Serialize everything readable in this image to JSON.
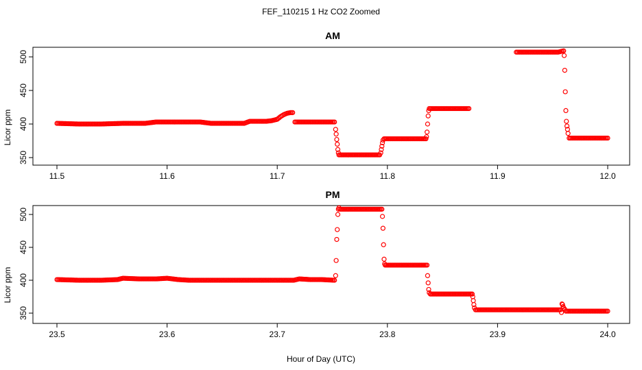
{
  "figure": {
    "title": "FEF_110215  1 Hz CO2 Zoomed",
    "xlabel": "Hour of Day (UTC)"
  },
  "chart_data": [
    {
      "type": "scatter",
      "title": "AM",
      "xlabel": "Hour of Day (UTC)",
      "ylabel": "Licor ppm",
      "xlim": [
        11.5,
        12.0
      ],
      "ylim": [
        350,
        515
      ],
      "xticks": [
        11.5,
        11.6,
        11.7,
        11.8,
        11.9,
        12.0
      ],
      "xtick_labels": [
        "11.5",
        "11.6",
        "11.7",
        "11.8",
        "11.9",
        "12.0"
      ],
      "yticks": [
        350,
        400,
        450,
        500
      ],
      "ytick_labels": [
        "350",
        "400",
        "450",
        "500"
      ],
      "grid": false,
      "marker": "open-circle",
      "color": "#ff0000",
      "series": [
        {
          "segments": [
            {
              "x": [
                11.5,
                11.52,
                11.54,
                11.56,
                11.58,
                11.59,
                11.6,
                11.61,
                11.62,
                11.63,
                11.64,
                11.65,
                11.66,
                11.67,
                11.675,
                11.68,
                11.69,
                11.695,
                11.7,
                11.703,
                11.706,
                11.709,
                11.712,
                11.714,
                11.716,
                11.72,
                11.73,
                11.74,
                11.75,
                11.752
              ],
              "y": [
                401,
                400,
                400,
                401,
                401,
                403,
                403,
                403,
                403,
                403,
                401,
                401,
                401,
                401,
                404,
                404,
                404,
                405,
                407,
                411,
                414,
                416,
                417,
                417,
                403,
                403,
                403,
                403,
                403,
                403
              ]
            },
            {
              "x": [
                11.753,
                11.7535,
                11.754,
                11.7545,
                11.755,
                11.7555,
                11.756
              ],
              "y": [
                392,
                385,
                377,
                370,
                362,
                357,
                354
              ]
            },
            {
              "x": [
                11.757,
                11.765,
                11.775,
                11.785,
                11.793
              ],
              "y": [
                354,
                354,
                354,
                354,
                354
              ]
            },
            {
              "x": [
                11.794,
                11.7945,
                11.795,
                11.7955,
                11.796
              ],
              "y": [
                357,
                362,
                367,
                372,
                376
              ]
            },
            {
              "x": [
                11.797,
                11.805,
                11.815,
                11.825,
                11.835
              ],
              "y": [
                378,
                378,
                378,
                378,
                378
              ]
            },
            {
              "x": [
                11.8355,
                11.836,
                11.8365,
                11.837,
                11.8375
              ],
              "y": [
                381,
                388,
                400,
                412,
                420
              ]
            },
            {
              "x": [
                11.838,
                11.845,
                11.855,
                11.865,
                11.874
              ],
              "y": [
                423,
                423,
                423,
                423,
                423
              ]
            },
            {
              "x": [
                11.917,
                11.925,
                11.935,
                11.945,
                11.955,
                11.96
              ],
              "y": [
                507,
                507,
                507,
                507,
                507,
                509
              ]
            },
            {
              "x": [
                11.9605,
                11.961,
                11.9615,
                11.962,
                11.9625,
                11.963,
                11.9635,
                11.964
              ],
              "y": [
                502,
                480,
                448,
                420,
                404,
                397,
                392,
                386
              ]
            },
            {
              "x": [
                11.965,
                11.97,
                11.98,
                11.99,
                12.0
              ],
              "y": [
                379,
                379,
                379,
                379,
                379
              ]
            }
          ]
        }
      ]
    },
    {
      "type": "scatter",
      "title": "PM",
      "xlabel": "Hour of Day (UTC)",
      "ylabel": "Licor ppm",
      "xlim": [
        23.5,
        24.0
      ],
      "ylim": [
        345,
        515
      ],
      "xticks": [
        23.5,
        23.6,
        23.7,
        23.8,
        23.9,
        24.0
      ],
      "xtick_labels": [
        "23.5",
        "23.6",
        "23.7",
        "23.8",
        "23.9",
        "24.0"
      ],
      "yticks": [
        350,
        400,
        450,
        500
      ],
      "ytick_labels": [
        "350",
        "400",
        "450",
        "500"
      ],
      "grid": false,
      "marker": "open-circle",
      "color": "#ff0000",
      "series": [
        {
          "segments": [
            {
              "x": [
                23.5,
                23.52,
                23.54,
                23.555,
                23.56,
                23.575,
                23.59,
                23.6,
                23.61,
                23.62,
                23.64,
                23.66,
                23.68,
                23.7,
                23.715,
                23.72,
                23.73,
                23.74,
                23.752
              ],
              "y": [
                401,
                400,
                400,
                401,
                403,
                402,
                402,
                403,
                401,
                400,
                400,
                400,
                400,
                400,
                400,
                402,
                401,
                401,
                400
              ]
            },
            {
              "x": [
                23.753,
                23.7535,
                23.754,
                23.7545,
                23.755,
                23.7555,
                23.756
              ],
              "y": [
                407,
                430,
                462,
                477,
                500,
                508,
                510
              ]
            },
            {
              "x": [
                23.757,
                23.765,
                23.775,
                23.785,
                23.795
              ],
              "y": [
                508,
                508,
                508,
                508,
                508
              ]
            },
            {
              "x": [
                23.7955,
                23.796,
                23.7965,
                23.797,
                23.7975
              ],
              "y": [
                497,
                479,
                454,
                432,
                425
              ]
            },
            {
              "x": [
                23.798,
                23.805,
                23.815,
                23.825,
                23.836
              ],
              "y": [
                423,
                423,
                423,
                423,
                423
              ]
            },
            {
              "x": [
                23.8365,
                23.837,
                23.8375,
                23.838
              ],
              "y": [
                407,
                396,
                386,
                381
              ]
            },
            {
              "x": [
                23.839,
                23.845,
                23.855,
                23.865,
                23.877
              ],
              "y": [
                379,
                379,
                379,
                379,
                379
              ]
            },
            {
              "x": [
                23.8775,
                23.878,
                23.8785,
                23.879
              ],
              "y": [
                375,
                369,
                363,
                358
              ]
            },
            {
              "x": [
                23.88,
                23.89,
                23.9,
                23.91,
                23.92,
                23.93,
                23.94,
                23.95,
                23.957
              ],
              "y": [
                355,
                355,
                355,
                355,
                355,
                355,
                355,
                355,
                355
              ]
            },
            {
              "x": [
                23.958,
                23.9585,
                23.959,
                23.9595,
                23.96,
                23.961
              ],
              "y": [
                351,
                364,
                363,
                360,
                358,
                356
              ]
            },
            {
              "x": [
                23.962,
                23.97,
                23.98,
                23.99,
                24.0
              ],
              "y": [
                353,
                353,
                353,
                353,
                353
              ]
            }
          ]
        }
      ]
    }
  ]
}
